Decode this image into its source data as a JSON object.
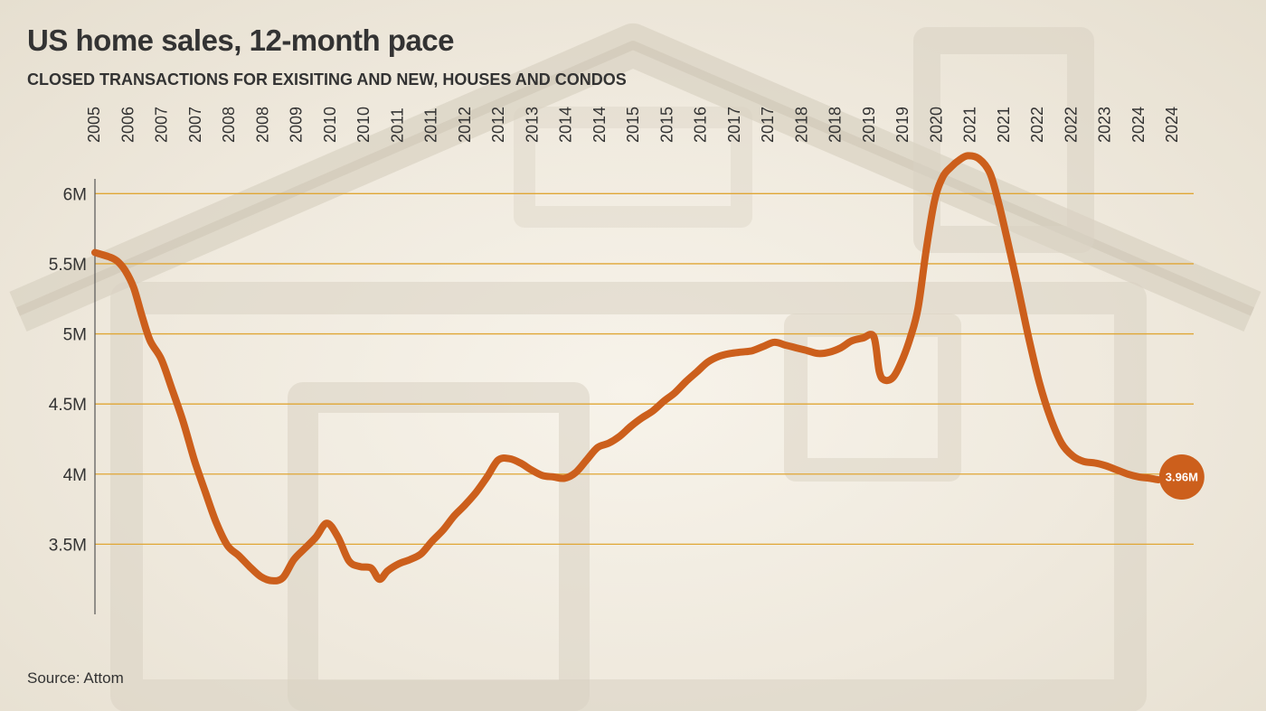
{
  "chart_data": {
    "type": "line",
    "title": "US home sales, 12-month pace",
    "subtitle": "CLOSED TRANSACTIONS FOR EXISITING AND NEW, HOUSES AND CONDOS",
    "source": "Source: Attom",
    "xlabel": "",
    "ylabel": "",
    "grid": true,
    "y_ticks": [
      {
        "value": 3500000,
        "label": "3.5M"
      },
      {
        "value": 4000000,
        "label": "4M"
      },
      {
        "value": 4500000,
        "label": "4.5M"
      },
      {
        "value": 5000000,
        "label": "5M"
      },
      {
        "value": 5500000,
        "label": "5.5M"
      },
      {
        "value": 6000000,
        "label": "6M"
      }
    ],
    "x_tick_labels": [
      "2005",
      "2006",
      "2007",
      "2007",
      "2008",
      "2008",
      "2009",
      "2010",
      "2010",
      "2011",
      "2011",
      "2012",
      "2012",
      "2013",
      "2014",
      "2014",
      "2015",
      "2015",
      "2016",
      "2017",
      "2017",
      "2018",
      "2018",
      "2019",
      "2019",
      "2020",
      "2021",
      "2021",
      "2022",
      "2022",
      "2023",
      "2024",
      "2024"
    ],
    "x_range": [
      2005.3,
      2024.7
    ],
    "y_range": [
      3000000,
      6350000
    ],
    "colors": {
      "line": "#cc5f1c",
      "grid": "#e0a634",
      "end_marker": "#cc5f1c",
      "end_label": "#ffffff"
    },
    "end_label": "3.96M",
    "series": [
      {
        "x": [
          2005.3,
          2005.55,
          2005.7,
          2005.85,
          2006.0,
          2006.15,
          2006.3,
          2006.5,
          2006.7,
          2006.9,
          2007.1,
          2007.3,
          2007.5,
          2007.7,
          2007.9,
          2008.1,
          2008.3,
          2008.5,
          2008.7,
          2008.9,
          2009.1,
          2009.3,
          2009.5,
          2009.7,
          2009.9,
          2010.1,
          2010.3,
          2010.45,
          2010.6,
          2010.8,
          2011.0,
          2011.2,
          2011.4,
          2011.6,
          2011.8,
          2012.0,
          2012.2,
          2012.4,
          2012.6,
          2012.8,
          2013.0,
          2013.2,
          2013.4,
          2013.6,
          2013.8,
          2014.0,
          2014.2,
          2014.4,
          2014.6,
          2014.8,
          2015.0,
          2015.2,
          2015.4,
          2015.6,
          2015.8,
          2016.0,
          2016.2,
          2016.4,
          2016.6,
          2016.8,
          2017.0,
          2017.2,
          2017.4,
          2017.6,
          2017.8,
          2018.0,
          2018.2,
          2018.4,
          2018.6,
          2018.8,
          2019.0,
          2019.2,
          2019.4,
          2019.5,
          2019.6,
          2019.75,
          2019.9,
          2020.05,
          2020.2,
          2020.35,
          2020.5,
          2020.65,
          2020.8,
          2020.95,
          2021.1,
          2021.3,
          2021.5,
          2021.65,
          2021.8,
          2022.0,
          2022.2,
          2022.4,
          2022.6,
          2022.8,
          2023.0,
          2023.2,
          2023.4,
          2023.6,
          2023.8,
          2024.0,
          2024.2,
          2024.4,
          2024.55
        ],
        "values": [
          5580000,
          5550000,
          5520000,
          5450000,
          5330000,
          5130000,
          4950000,
          4820000,
          4600000,
          4370000,
          4100000,
          3870000,
          3650000,
          3490000,
          3420000,
          3340000,
          3270000,
          3240000,
          3260000,
          3390000,
          3470000,
          3550000,
          3650000,
          3550000,
          3380000,
          3340000,
          3330000,
          3250000,
          3310000,
          3360000,
          3390000,
          3430000,
          3520000,
          3600000,
          3700000,
          3780000,
          3870000,
          3980000,
          4100000,
          4110000,
          4080000,
          4030000,
          3990000,
          3980000,
          3970000,
          4010000,
          4100000,
          4190000,
          4220000,
          4270000,
          4340000,
          4400000,
          4450000,
          4520000,
          4580000,
          4660000,
          4730000,
          4800000,
          4840000,
          4860000,
          4870000,
          4880000,
          4910000,
          4940000,
          4920000,
          4900000,
          4880000,
          4860000,
          4870000,
          4900000,
          4950000,
          4970000,
          4980000,
          4730000,
          4670000,
          4690000,
          4800000,
          4960000,
          5180000,
          5600000,
          5950000,
          6120000,
          6190000,
          6240000,
          6270000,
          6250000,
          6150000,
          5950000,
          5700000,
          5350000,
          4980000,
          4650000,
          4400000,
          4220000,
          4130000,
          4090000,
          4080000,
          4060000,
          4030000,
          4000000,
          3980000,
          3970000,
          3960000
        ]
      }
    ]
  }
}
